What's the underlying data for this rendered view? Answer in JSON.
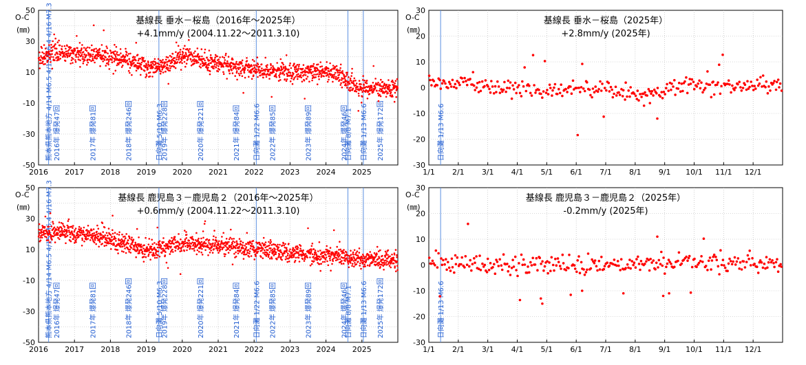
{
  "colors": {
    "points": "#ff0000",
    "event_lines": "#5b8fe0",
    "annotation_text": "#1f5bd0",
    "grid": "#b0b0b0"
  },
  "chart_data": [
    {
      "id": "p1",
      "type": "scatter",
      "title": "基線長 垂水－桜島（2016年～2025年）",
      "subtitle": "+4.1mm/y (2004.11.22～2011.3.10)",
      "ylabel_top": "O-C",
      "ylabel_unit": "(㎜)",
      "ylim": [
        -50,
        50
      ],
      "yticks": [
        50,
        30,
        10,
        -10,
        -30,
        -50
      ],
      "xlim": [
        2016,
        2026
      ],
      "xticks": [
        "2016",
        "2017",
        "2018",
        "2019",
        "2020",
        "2021",
        "2022",
        "2023",
        "2024",
        "2025"
      ],
      "trend": [
        [
          2016.0,
          19
        ],
        [
          2016.5,
          22
        ],
        [
          2017.0,
          22
        ],
        [
          2017.5,
          21
        ],
        [
          2018.0,
          20
        ],
        [
          2018.4,
          18
        ],
        [
          2018.8,
          15
        ],
        [
          2019.2,
          13
        ],
        [
          2019.6,
          15
        ],
        [
          2019.9,
          20
        ],
        [
          2020.2,
          21
        ],
        [
          2020.6,
          17
        ],
        [
          2021.0,
          16
        ],
        [
          2021.5,
          14
        ],
        [
          2022.0,
          12
        ],
        [
          2022.5,
          11
        ],
        [
          2023.0,
          10
        ],
        [
          2023.5,
          10
        ],
        [
          2024.0,
          11
        ],
        [
          2024.4,
          8
        ],
        [
          2024.6,
          3
        ],
        [
          2024.9,
          -1
        ],
        [
          2025.2,
          -1
        ],
        [
          2025.6,
          -1
        ],
        [
          2026.0,
          0
        ]
      ],
      "scatter_sd": 3,
      "events": [
        {
          "x": 2016.28,
          "label": "熊本県熊本地方 4/14 M6.5 4/15 M6.4 4/16 M7.3"
        },
        {
          "x": 2016.5,
          "label": "2016年 爆発47回"
        },
        {
          "x": 2017.5,
          "label": "2017年 爆発81回"
        },
        {
          "x": 2018.5,
          "label": "2018年 爆発246回"
        },
        {
          "x": 2019.35,
          "label": "日向灘 5/10 M6.3"
        },
        {
          "x": 2019.5,
          "label": "2019年 爆発228回"
        },
        {
          "x": 2020.5,
          "label": "2020年 爆発221回"
        },
        {
          "x": 2021.5,
          "label": "2021年 爆発84回"
        },
        {
          "x": 2022.06,
          "label": "日向灘 1/22 M6.6"
        },
        {
          "x": 2022.5,
          "label": "2022年 爆発85回"
        },
        {
          "x": 2023.5,
          "label": "2023年 爆発89回"
        },
        {
          "x": 2024.5,
          "label": "2024年 爆発46回"
        },
        {
          "x": 2024.61,
          "label": "日向灘 8/8 M7.1"
        },
        {
          "x": 2025.04,
          "label": "日向灘 1/13 M6.6"
        },
        {
          "x": 2025.5,
          "label": "2025年 爆発172回"
        }
      ]
    },
    {
      "id": "p2",
      "type": "scatter",
      "title": "基線長 垂水－桜島（2025年）",
      "subtitle": "+2.8mm/y (2025年)",
      "ylabel_top": "O-C",
      "ylabel_unit": "(㎜)",
      "ylim": [
        -30,
        30
      ],
      "yticks": [
        30,
        20,
        10,
        0,
        -10,
        -20,
        -30
      ],
      "xlim": [
        0,
        12
      ],
      "xticks": [
        "1/1",
        "2/1",
        "3/1",
        "4/1",
        "5/1",
        "6/1",
        "7/1",
        "8/1",
        "9/1",
        "10/1",
        "11/1",
        "12/1"
      ],
      "trend": [
        [
          0,
          2
        ],
        [
          1,
          2
        ],
        [
          2,
          1
        ],
        [
          3,
          0
        ],
        [
          4,
          -1
        ],
        [
          5,
          0
        ],
        [
          6,
          -1
        ],
        [
          7,
          -3
        ],
        [
          8,
          -1
        ],
        [
          9,
          1
        ],
        [
          10,
          1
        ],
        [
          11,
          1
        ],
        [
          12,
          1
        ]
      ],
      "scatter_sd": 1.6,
      "outliers": [
        [
          1.5,
          6
        ],
        [
          7.75,
          -12
        ],
        [
          7.3,
          -7
        ],
        [
          7.5,
          -6
        ]
      ],
      "events": [
        {
          "x": 0.4,
          "label": "日向灘 1/13 M6.6"
        }
      ]
    },
    {
      "id": "p3",
      "type": "scatter",
      "title": "基線長 鹿児島３－鹿児島２（2016年～2025年）",
      "subtitle": "+0.6mm/y (2004.11.22～2011.3.10)",
      "ylabel_top": "O-C",
      "ylabel_unit": "(㎜)",
      "ylim": [
        -50,
        50
      ],
      "yticks": [
        50,
        30,
        10,
        -10,
        -30,
        -50
      ],
      "xlim": [
        2016,
        2026
      ],
      "xticks": [
        "2016",
        "2017",
        "2018",
        "2019",
        "2020",
        "2021",
        "2022",
        "2023",
        "2024",
        "2025"
      ],
      "trend": [
        [
          2016.0,
          20
        ],
        [
          2016.5,
          22
        ],
        [
          2017.0,
          20
        ],
        [
          2017.5,
          19
        ],
        [
          2018.0,
          17
        ],
        [
          2018.5,
          13
        ],
        [
          2019.0,
          9
        ],
        [
          2019.3,
          10
        ],
        [
          2019.8,
          13
        ],
        [
          2020.2,
          15
        ],
        [
          2020.6,
          13
        ],
        [
          2021.0,
          12
        ],
        [
          2021.5,
          11
        ],
        [
          2022.0,
          11
        ],
        [
          2022.5,
          9
        ],
        [
          2023.0,
          7
        ],
        [
          2023.5,
          7
        ],
        [
          2024.0,
          6
        ],
        [
          2024.5,
          4
        ],
        [
          2025.0,
          4
        ],
        [
          2025.5,
          4
        ],
        [
          2026.0,
          2
        ]
      ],
      "scatter_sd": 3,
      "events": [
        {
          "x": 2016.28,
          "label": "熊本県熊本地方 4/14 M6.5 4/15 M6.4 4/16 M7.3"
        },
        {
          "x": 2016.5,
          "label": "2016年 爆発47回"
        },
        {
          "x": 2017.5,
          "label": "2017年 爆発81回"
        },
        {
          "x": 2018.5,
          "label": "2018年 爆発246回"
        },
        {
          "x": 2019.35,
          "label": "日向灘 5/10 M6.3"
        },
        {
          "x": 2019.5,
          "label": "2019年 爆発228回"
        },
        {
          "x": 2020.5,
          "label": "2020年 爆発221回"
        },
        {
          "x": 2021.5,
          "label": "2021年 爆発84回"
        },
        {
          "x": 2022.06,
          "label": "日向灘 1/22 M6.6"
        },
        {
          "x": 2022.5,
          "label": "2022年 爆発85回"
        },
        {
          "x": 2023.5,
          "label": "2023年 爆発89回"
        },
        {
          "x": 2024.5,
          "label": "2024年 爆発46回"
        },
        {
          "x": 2024.61,
          "label": "日向灘 8/8 M7.1"
        },
        {
          "x": 2025.04,
          "label": "日向灘 1/13 M6.6"
        },
        {
          "x": 2025.5,
          "label": "2025年 爆発172回"
        }
      ]
    },
    {
      "id": "p4",
      "type": "scatter",
      "title": "基線長 鹿児島３－鹿児島２（2025年）",
      "subtitle": "-0.2mm/y (2025年)",
      "ylabel_top": "O-C",
      "ylabel_unit": "(㎜)",
      "ylim": [
        -30,
        30
      ],
      "yticks": [
        30,
        20,
        10,
        0,
        -10,
        -20,
        -30
      ],
      "xlim": [
        0,
        12
      ],
      "xticks": [
        "1/1",
        "2/1",
        "3/1",
        "4/1",
        "5/1",
        "6/1",
        "7/1",
        "8/1",
        "9/1",
        "10/1",
        "11/1",
        "12/1"
      ],
      "trend": [
        [
          0,
          1
        ],
        [
          3,
          0
        ],
        [
          6,
          0
        ],
        [
          9,
          1
        ],
        [
          12,
          0
        ]
      ],
      "scatter_sd": 1.8,
      "outliers": [
        [
          3.85,
          -15
        ],
        [
          3.8,
          -13
        ],
        [
          7.75,
          11
        ],
        [
          7.95,
          -12
        ],
        [
          8.15,
          -11
        ],
        [
          5.2,
          -10
        ],
        [
          6.6,
          -11
        ]
      ],
      "events": [
        {
          "x": 0.4,
          "label": "日向灘 1/13 M6.6"
        }
      ]
    }
  ]
}
